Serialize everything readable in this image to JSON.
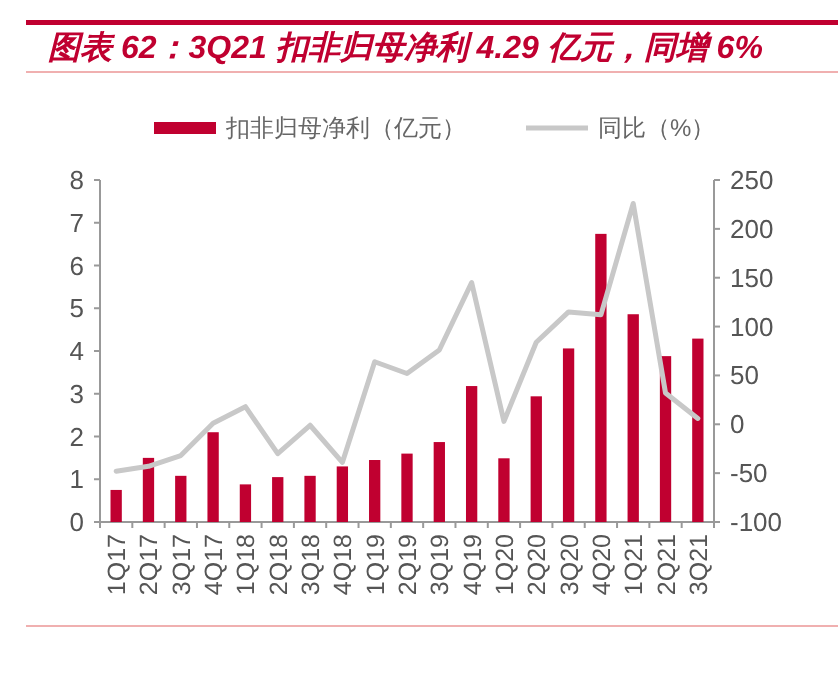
{
  "chart_data": {
    "type": "bar",
    "title": "图表 62：3Q21 扣非归母净利 4.29 亿元，同增 6%",
    "categories": [
      "1Q17",
      "2Q17",
      "3Q17",
      "4Q17",
      "1Q18",
      "2Q18",
      "3Q18",
      "4Q18",
      "1Q19",
      "2Q19",
      "3Q19",
      "4Q19",
      "1Q20",
      "2Q20",
      "3Q20",
      "4Q20",
      "1Q21",
      "2Q21",
      "3Q21"
    ],
    "series": [
      {
        "name": "扣非归母净利（亿元）",
        "color": "#c00030",
        "values": [
          0.75,
          1.5,
          1.08,
          2.1,
          0.88,
          1.05,
          1.08,
          1.3,
          1.45,
          1.6,
          1.87,
          3.18,
          1.49,
          2.94,
          4.06,
          6.74,
          4.86,
          3.88,
          4.29
        ]
      },
      {
        "name": "同比（%）",
        "type": "line",
        "axis": "y2",
        "color": "#c8c8c8",
        "values": [
          -48,
          -43,
          -32,
          1,
          18,
          -30,
          -1,
          -39,
          64,
          52,
          76,
          145,
          3,
          84,
          115,
          112,
          226,
          32,
          6
        ]
      }
    ],
    "ylim": [
      0,
      8
    ],
    "yticks": [
      0,
      1,
      2,
      3,
      4,
      5,
      6,
      7,
      8
    ],
    "y2lim": [
      -100,
      250
    ],
    "y2ticks": [
      -100,
      -50,
      0,
      50,
      100,
      150,
      200,
      250
    ],
    "legend": "top",
    "grid": false,
    "marker": "none",
    "line_style": "solid"
  }
}
